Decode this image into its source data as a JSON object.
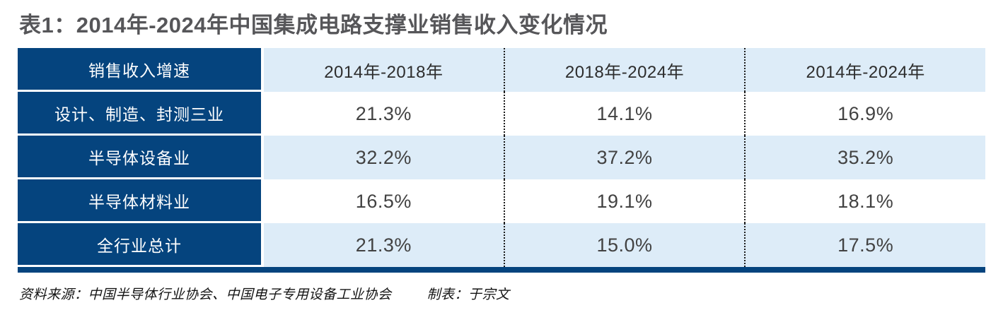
{
  "title": "表1：2014年-2024年中国集成电路支撑业销售收入变化情况",
  "table": {
    "header": {
      "label": "销售收入增速",
      "cols": [
        "2014年-2018年",
        "2018年-2024年",
        "2014年-2024年"
      ]
    },
    "rows": [
      {
        "label": "设计、制造、封测三业",
        "values": [
          "21.3%",
          "14.1%",
          "16.9%"
        ]
      },
      {
        "label": "半导体设备业",
        "values": [
          "32.2%",
          "37.2%",
          "35.2%"
        ]
      },
      {
        "label": "半导体材料业",
        "values": [
          "16.5%",
          "19.1%",
          "18.1%"
        ]
      },
      {
        "label": "全行业总计",
        "values": [
          "21.3%",
          "15.0%",
          "17.5%"
        ]
      }
    ]
  },
  "footer": {
    "source": "资料来源：中国半导体行业协会、中国电子专用设备工业协会",
    "credit": "制表：于宗文"
  },
  "colors": {
    "dark_blue": "#05447E",
    "light_blue": "#DDECF8",
    "title_gray": "#565659"
  },
  "chart_data": {
    "type": "table",
    "title": "表1：2014年-2024年中国集成电路支撑业销售收入变化情况",
    "columns": [
      "销售收入增速",
      "2014年-2018年",
      "2018年-2024年",
      "2014年-2024年"
    ],
    "rows": [
      {
        "label": "设计、制造、封测三业",
        "values_pct": [
          21.3,
          14.1,
          16.9
        ]
      },
      {
        "label": "半导体设备业",
        "values_pct": [
          32.2,
          37.2,
          35.2
        ]
      },
      {
        "label": "半导体材料业",
        "values_pct": [
          16.5,
          19.1,
          18.1
        ]
      },
      {
        "label": "全行业总计",
        "values_pct": [
          21.3,
          15.0,
          17.5
        ]
      }
    ],
    "source": "资料来源：中国半导体行业协会、中国电子专用设备工业协会",
    "credit": "制表：于宗文"
  }
}
